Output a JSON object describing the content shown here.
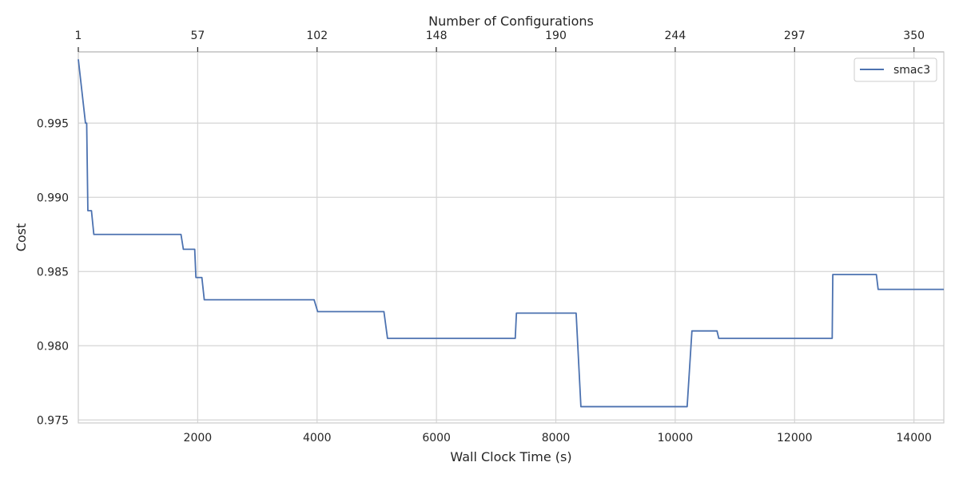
{
  "chart_data": {
    "type": "line",
    "title": "",
    "xlabel": "Wall Clock Time (s)",
    "ylabel": "Cost",
    "top_xlabel": "Number of Configurations",
    "xlim": [
      0,
      14500
    ],
    "ylim": [
      0.9748,
      0.9998
    ],
    "xticks": [
      2000,
      4000,
      6000,
      8000,
      10000,
      12000,
      14000
    ],
    "xtick_labels": [
      "2000",
      "4000",
      "6000",
      "8000",
      "10000",
      "12000",
      "14000"
    ],
    "yticks": [
      0.975,
      0.98,
      0.985,
      0.99,
      0.995
    ],
    "ytick_labels": [
      "0.975",
      "0.980",
      "0.985",
      "0.990",
      "0.995"
    ],
    "top_ticks": [
      {
        "x": 0,
        "label": "1"
      },
      {
        "x": 2000,
        "label": "57"
      },
      {
        "x": 4000,
        "label": "102"
      },
      {
        "x": 6000,
        "label": "148"
      },
      {
        "x": 8000,
        "label": "190"
      },
      {
        "x": 10000,
        "label": "244"
      },
      {
        "x": 12000,
        "label": "297"
      },
      {
        "x": 14000,
        "label": "350"
      }
    ],
    "grid": true,
    "legend_position": "top-right",
    "series": [
      {
        "name": "smac3",
        "color": "#4c72b0",
        "points": [
          [
            0,
            0.9993
          ],
          [
            120,
            0.995
          ],
          [
            140,
            0.995
          ],
          [
            160,
            0.9891
          ],
          [
            220,
            0.9891
          ],
          [
            260,
            0.9875
          ],
          [
            1720,
            0.9875
          ],
          [
            1760,
            0.9865
          ],
          [
            1950,
            0.9865
          ],
          [
            1970,
            0.9846
          ],
          [
            2070,
            0.9846
          ],
          [
            2110,
            0.9831
          ],
          [
            3950,
            0.9831
          ],
          [
            4010,
            0.9823
          ],
          [
            5120,
            0.9823
          ],
          [
            5180,
            0.9805
          ],
          [
            7320,
            0.9805
          ],
          [
            7340,
            0.9822
          ],
          [
            8340,
            0.9822
          ],
          [
            8420,
            0.9759
          ],
          [
            10200,
            0.9759
          ],
          [
            10280,
            0.981
          ],
          [
            10700,
            0.981
          ],
          [
            10730,
            0.9805
          ],
          [
            12630,
            0.9805
          ],
          [
            12640,
            0.9848
          ],
          [
            13370,
            0.9848
          ],
          [
            13400,
            0.9838
          ],
          [
            14500,
            0.9838
          ]
        ]
      }
    ]
  }
}
